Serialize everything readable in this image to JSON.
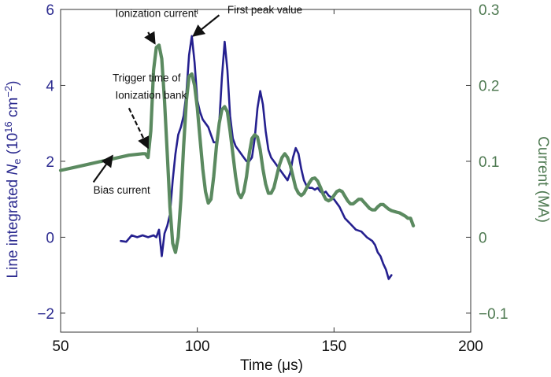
{
  "chart_data": {
    "type": "line",
    "xlabel": "Time (μs)",
    "ylabel_left": {
      "pre": "Line integrated ",
      "var": "N",
      "sub": "e",
      "mid": " (10",
      "sup1": "16",
      "unit": " cm",
      "sup2": "−2",
      "post": ")"
    },
    "ylabel_right": "Current (MA)",
    "xlim": [
      50,
      200
    ],
    "ylim_left": [
      -2.5,
      6
    ],
    "ylim_right": [
      -0.125,
      0.3
    ],
    "x_ticks": [
      "50",
      "100",
      "150",
      "200"
    ],
    "y_ticks_left": [
      "−2",
      "0",
      "2",
      "4",
      "6"
    ],
    "y_ticks_right": [
      "−0.1",
      "0",
      "0.1",
      "0.2",
      "0.3"
    ],
    "colors": {
      "left_axis": "#2b2a8f",
      "right_axis": "#4f7a52",
      "ne_series": "#25208f",
      "current_series": "#5b8a60"
    },
    "series": [
      {
        "axis": "left",
        "points": [
          [
            72,
            -0.1
          ],
          [
            74,
            -0.12
          ],
          [
            76,
            0.05
          ],
          [
            78,
            0.0
          ],
          [
            80,
            0.05
          ],
          [
            82,
            0.0
          ],
          [
            84,
            0.05
          ],
          [
            85,
            0.0
          ],
          [
            86,
            0.2
          ],
          [
            87,
            -0.5
          ],
          [
            88,
            0.1
          ],
          [
            89,
            0.3
          ],
          [
            90,
            0.6
          ],
          [
            91,
            1.5
          ],
          [
            92,
            2.2
          ],
          [
            93,
            2.7
          ],
          [
            94,
            2.9
          ],
          [
            95,
            3.2
          ],
          [
            96,
            3.8
          ],
          [
            97,
            4.8
          ],
          [
            98,
            5.3
          ],
          [
            99,
            4.6
          ],
          [
            100,
            3.6
          ],
          [
            101,
            3.3
          ],
          [
            102,
            3.1
          ],
          [
            103,
            3.0
          ],
          [
            104,
            2.9
          ],
          [
            105,
            2.7
          ],
          [
            106,
            2.5
          ],
          [
            107,
            2.5
          ],
          [
            108,
            3.0
          ],
          [
            109,
            4.2
          ],
          [
            110,
            5.15
          ],
          [
            111,
            4.4
          ],
          [
            112,
            3.2
          ],
          [
            113,
            2.6
          ],
          [
            114,
            2.4
          ],
          [
            115,
            2.3
          ],
          [
            116,
            2.2
          ],
          [
            117,
            2.1
          ],
          [
            118,
            2.0
          ],
          [
            119,
            2.0
          ],
          [
            120,
            2.1
          ],
          [
            121,
            2.6
          ],
          [
            122,
            3.4
          ],
          [
            123,
            3.85
          ],
          [
            124,
            3.5
          ],
          [
            125,
            2.8
          ],
          [
            126,
            2.3
          ],
          [
            127,
            2.1
          ],
          [
            128,
            2.0
          ],
          [
            129,
            1.9
          ],
          [
            130,
            1.8
          ],
          [
            131,
            1.7
          ],
          [
            132,
            1.6
          ],
          [
            133,
            1.5
          ],
          [
            134,
            1.7
          ],
          [
            135,
            2.1
          ],
          [
            136,
            2.35
          ],
          [
            137,
            2.2
          ],
          [
            138,
            1.8
          ],
          [
            139,
            1.5
          ],
          [
            140,
            1.35
          ],
          [
            141,
            1.3
          ],
          [
            142,
            1.3
          ],
          [
            143,
            1.25
          ],
          [
            144,
            1.3
          ],
          [
            145,
            1.2
          ],
          [
            146,
            1.15
          ],
          [
            147,
            1.2
          ],
          [
            148,
            1.1
          ],
          [
            150,
            1.0
          ],
          [
            152,
            0.8
          ],
          [
            154,
            0.5
          ],
          [
            156,
            0.35
          ],
          [
            158,
            0.2
          ],
          [
            160,
            0.15
          ],
          [
            162,
            0.0
          ],
          [
            164,
            -0.1
          ],
          [
            165,
            -0.2
          ],
          [
            166,
            -0.4
          ],
          [
            167,
            -0.5
          ],
          [
            168,
            -0.7
          ],
          [
            169,
            -0.85
          ],
          [
            170,
            -1.1
          ],
          [
            171,
            -1.0
          ]
        ]
      },
      {
        "axis": "right",
        "points": [
          [
            50,
            0.088
          ],
          [
            55,
            0.092
          ],
          [
            60,
            0.096
          ],
          [
            65,
            0.1
          ],
          [
            70,
            0.104
          ],
          [
            75,
            0.108
          ],
          [
            80,
            0.11
          ],
          [
            81,
            0.11
          ],
          [
            82,
            0.105
          ],
          [
            83,
            0.14
          ],
          [
            84,
            0.22
          ],
          [
            85,
            0.25
          ],
          [
            86,
            0.253
          ],
          [
            87,
            0.235
          ],
          [
            88,
            0.18
          ],
          [
            89,
            0.11
          ],
          [
            90,
            0.04
          ],
          [
            91,
            -0.008
          ],
          [
            92,
            -0.02
          ],
          [
            93,
            0.0
          ],
          [
            94,
            0.05
          ],
          [
            95,
            0.12
          ],
          [
            96,
            0.18
          ],
          [
            97,
            0.212
          ],
          [
            98,
            0.215
          ],
          [
            99,
            0.2
          ],
          [
            100,
            0.17
          ],
          [
            101,
            0.13
          ],
          [
            102,
            0.09
          ],
          [
            103,
            0.06
          ],
          [
            104,
            0.045
          ],
          [
            105,
            0.05
          ],
          [
            106,
            0.08
          ],
          [
            107,
            0.12
          ],
          [
            108,
            0.15
          ],
          [
            109,
            0.168
          ],
          [
            110,
            0.172
          ],
          [
            111,
            0.165
          ],
          [
            112,
            0.14
          ],
          [
            113,
            0.11
          ],
          [
            114,
            0.08
          ],
          [
            115,
            0.058
          ],
          [
            116,
            0.052
          ],
          [
            117,
            0.06
          ],
          [
            118,
            0.08
          ],
          [
            119,
            0.11
          ],
          [
            120,
            0.13
          ],
          [
            121,
            0.135
          ],
          [
            122,
            0.132
          ],
          [
            123,
            0.115
          ],
          [
            124,
            0.09
          ],
          [
            125,
            0.07
          ],
          [
            126,
            0.058
          ],
          [
            127,
            0.058
          ],
          [
            128,
            0.065
          ],
          [
            129,
            0.08
          ],
          [
            130,
            0.095
          ],
          [
            131,
            0.105
          ],
          [
            132,
            0.11
          ],
          [
            133,
            0.105
          ],
          [
            134,
            0.095
          ],
          [
            135,
            0.08
          ],
          [
            136,
            0.065
          ],
          [
            137,
            0.058
          ],
          [
            138,
            0.055
          ],
          [
            139,
            0.058
          ],
          [
            140,
            0.065
          ],
          [
            141,
            0.072
          ],
          [
            142,
            0.077
          ],
          [
            143,
            0.078
          ],
          [
            144,
            0.074
          ],
          [
            145,
            0.066
          ],
          [
            146,
            0.057
          ],
          [
            147,
            0.05
          ],
          [
            148,
            0.048
          ],
          [
            149,
            0.05
          ],
          [
            150,
            0.055
          ],
          [
            151,
            0.06
          ],
          [
            152,
            0.062
          ],
          [
            153,
            0.06
          ],
          [
            154,
            0.054
          ],
          [
            155,
            0.048
          ],
          [
            156,
            0.044
          ],
          [
            157,
            0.044
          ],
          [
            158,
            0.047
          ],
          [
            159,
            0.05
          ],
          [
            160,
            0.05
          ],
          [
            161,
            0.046
          ],
          [
            162,
            0.042
          ],
          [
            163,
            0.038
          ],
          [
            164,
            0.036
          ],
          [
            165,
            0.036
          ],
          [
            166,
            0.04
          ],
          [
            167,
            0.043
          ],
          [
            168,
            0.043
          ],
          [
            169,
            0.04
          ],
          [
            170,
            0.037
          ],
          [
            171,
            0.035
          ],
          [
            172,
            0.034
          ],
          [
            173,
            0.033
          ],
          [
            174,
            0.032
          ],
          [
            175,
            0.03
          ],
          [
            176,
            0.028
          ],
          [
            177,
            0.025
          ],
          [
            178,
            0.025
          ],
          [
            179,
            0.015
          ]
        ]
      }
    ],
    "annotations": [
      {
        "label": "Ionization current",
        "text_at": [
          70,
          5.8
        ],
        "tail": [
          82,
          5.4
        ],
        "head": [
          84.5,
          5.1
        ]
      },
      {
        "label": "First peak value",
        "text_at": [
          111,
          5.9
        ],
        "tail": [
          108,
          5.85
        ],
        "head": [
          98.5,
          5.3
        ]
      },
      {
        "label": "Trigger time of",
        "text_at": [
          69,
          4.1
        ]
      },
      {
        "label": "Ionization bank",
        "text_at": [
          70,
          3.65
        ],
        "tail": [
          75,
          3.4
        ],
        "head": [
          82,
          2.35
        ]
      },
      {
        "label": "Bias current",
        "text_at": [
          62,
          1.15
        ],
        "tail": [
          62,
          1.45
        ],
        "head": [
          69,
          2.15
        ]
      }
    ]
  }
}
